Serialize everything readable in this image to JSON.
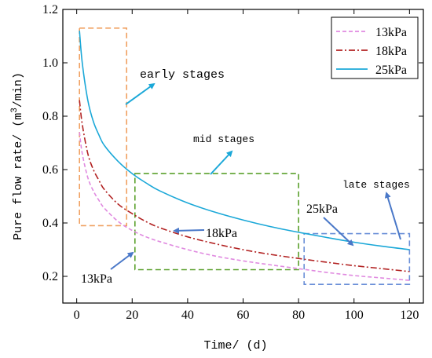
{
  "chart_data": {
    "type": "line",
    "xlabel": "Time/ (d)",
    "ylabel_prefix": "Pure flow rate/ (m",
    "ylabel_sup": "3",
    "ylabel_suffix": "/min)",
    "xlim": [
      -5,
      125
    ],
    "ylim": [
      0.1,
      1.2
    ],
    "xticks": [
      0,
      20,
      40,
      60,
      80,
      100,
      120
    ],
    "yticks": [
      0.2,
      0.4,
      0.6,
      0.8,
      1.0,
      1.2
    ],
    "ytick_labels": [
      "0.2",
      "0.4",
      "0.6",
      "0.8",
      "1.0",
      "1.2"
    ],
    "grid": false,
    "legend_position": "top-right",
    "series": [
      {
        "name": "13kPa",
        "color": "#e08ae0",
        "dash": "dashed",
        "x": [
          1,
          2,
          4,
          6,
          8,
          10,
          15,
          20,
          25,
          30,
          40,
          50,
          60,
          70,
          80,
          90,
          100,
          110,
          120
        ],
        "y": [
          0.74,
          0.66,
          0.57,
          0.52,
          0.485,
          0.455,
          0.405,
          0.372,
          0.348,
          0.33,
          0.3,
          0.276,
          0.258,
          0.243,
          0.229,
          0.215,
          0.203,
          0.194,
          0.185
        ]
      },
      {
        "name": "18kPa",
        "color": "#b22222",
        "dash": "dashdot",
        "x": [
          1,
          2,
          4,
          6,
          8,
          10,
          15,
          20,
          25,
          30,
          40,
          50,
          60,
          70,
          80,
          90,
          100,
          110,
          120
        ],
        "y": [
          0.86,
          0.77,
          0.66,
          0.6,
          0.56,
          0.525,
          0.47,
          0.435,
          0.405,
          0.382,
          0.348,
          0.322,
          0.3,
          0.282,
          0.267,
          0.253,
          0.24,
          0.229,
          0.218
        ]
      },
      {
        "name": "25kPa",
        "color": "#1ba8d8",
        "dash": "solid",
        "x": [
          1,
          2,
          4,
          6,
          8,
          10,
          15,
          20,
          25,
          30,
          40,
          50,
          60,
          70,
          80,
          90,
          100,
          110,
          120
        ],
        "y": [
          1.12,
          1.0,
          0.86,
          0.78,
          0.73,
          0.69,
          0.63,
          0.585,
          0.55,
          0.52,
          0.475,
          0.44,
          0.411,
          0.386,
          0.365,
          0.346,
          0.328,
          0.313,
          0.3
        ]
      }
    ],
    "annotations": {
      "early": "early stages",
      "mid": "mid stages",
      "late": "late stages",
      "label13": "13kPa",
      "label18": "18kPa",
      "label25": "25kPa"
    },
    "regions": [
      {
        "name": "early",
        "color": "#f0a060",
        "x": [
          1,
          18
        ],
        "y": [
          0.39,
          1.13
        ]
      },
      {
        "name": "mid",
        "color": "#5aa02c",
        "x": [
          21,
          80
        ],
        "y": [
          0.225,
          0.585
        ]
      },
      {
        "name": "late",
        "color": "#6a8fd8",
        "x": [
          82,
          120
        ],
        "y": [
          0.17,
          0.36
        ]
      }
    ]
  }
}
